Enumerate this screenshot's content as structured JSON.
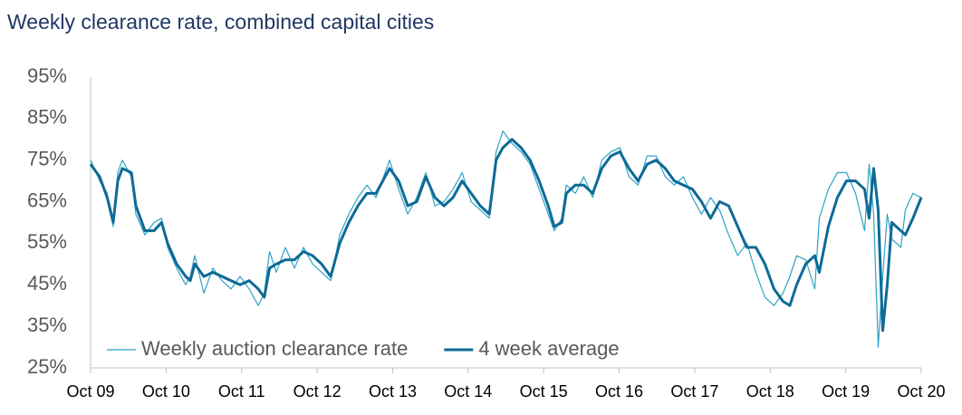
{
  "chart_data": {
    "type": "line",
    "title": "Weekly clearance rate, combined capital cities",
    "x": [
      2009.75,
      2009.87,
      2009.97,
      2010.05,
      2010.11,
      2010.17,
      2010.29,
      2010.35,
      2010.47,
      2010.59,
      2010.69,
      2010.77,
      2010.89,
      2011.01,
      2011.07,
      2011.13,
      2011.25,
      2011.37,
      2011.49,
      2011.61,
      2011.73,
      2011.85,
      2011.97,
      2012.05,
      2012.12,
      2012.21,
      2012.33,
      2012.45,
      2012.57,
      2012.69,
      2012.81,
      2012.93,
      2013.05,
      2013.17,
      2013.29,
      2013.41,
      2013.53,
      2013.65,
      2013.71,
      2013.83,
      2013.95,
      2014.07,
      2014.19,
      2014.31,
      2014.43,
      2014.55,
      2014.67,
      2014.79,
      2014.91,
      2015.03,
      2015.12,
      2015.21,
      2015.33,
      2015.45,
      2015.57,
      2015.69,
      2015.81,
      2015.89,
      2015.99,
      2016.05,
      2016.17,
      2016.28,
      2016.4,
      2016.52,
      2016.64,
      2016.76,
      2016.88,
      2017.0,
      2017.12,
      2017.24,
      2017.36,
      2017.48,
      2017.6,
      2017.72,
      2017.84,
      2017.96,
      2018.08,
      2018.2,
      2018.32,
      2018.44,
      2018.56,
      2018.68,
      2018.8,
      2018.92,
      2019.01,
      2019.1,
      2019.22,
      2019.34,
      2019.4,
      2019.52,
      2019.64,
      2019.76,
      2019.88,
      2020.0,
      2020.06,
      2020.12,
      2020.18,
      2020.24,
      2020.3,
      2020.36,
      2020.48,
      2020.54,
      2020.64,
      2020.75
    ],
    "series": [
      {
        "name": "Weekly auction clearance rate",
        "color": "#2ea3c4",
        "width": 1.2,
        "values": [
          75,
          70,
          67,
          59,
          72,
          75,
          71,
          62,
          57,
          60,
          61,
          54,
          49,
          45,
          47,
          52,
          43,
          49,
          46,
          44,
          47,
          44,
          40,
          43,
          53,
          48,
          54,
          49,
          54,
          50,
          48,
          46,
          57,
          62,
          66,
          69,
          66,
          72,
          75,
          68,
          62,
          66,
          72,
          64,
          65,
          68,
          72,
          65,
          63,
          61,
          77,
          82,
          79,
          77,
          74,
          68,
          62,
          58,
          61,
          69,
          67,
          71,
          66,
          75,
          77,
          78,
          71,
          69,
          76,
          76,
          71,
          69,
          71,
          66,
          62,
          66,
          63,
          57,
          52,
          55,
          48,
          42,
          40,
          43,
          47,
          52,
          51,
          44,
          61,
          68,
          72,
          72,
          67,
          58,
          74,
          62,
          30,
          47,
          62,
          56,
          54,
          63,
          67,
          66
        ]
      },
      {
        "name": "4 week average",
        "color": "#0e6a96",
        "width": 3,
        "values": [
          74,
          71,
          66,
          60,
          70,
          73,
          72,
          64,
          58,
          58,
          60,
          55,
          50,
          47,
          46,
          50,
          47,
          48,
          47,
          46,
          45,
          46,
          44,
          42,
          49,
          50,
          51,
          51,
          53,
          52,
          50,
          47,
          55,
          60,
          64,
          67,
          67,
          71,
          73,
          70,
          64,
          65,
          71,
          66,
          64,
          66,
          70,
          67,
          64,
          62,
          75,
          78,
          80,
          78,
          75,
          70,
          64,
          59,
          60,
          67,
          69,
          69,
          67,
          73,
          76,
          77,
          73,
          70,
          74,
          75,
          73,
          70,
          69,
          68,
          65,
          61,
          65,
          64,
          59,
          54,
          54,
          50,
          44,
          41,
          40,
          45,
          50,
          52,
          48,
          59,
          66,
          70,
          70,
          68,
          61,
          73,
          63,
          34,
          45,
          60,
          58,
          57,
          61,
          66
        ]
      }
    ],
    "xlim": [
      2009.75,
      2020.75
    ],
    "xticks": [
      {
        "value": 2009.75,
        "label": "Oct 09"
      },
      {
        "value": 2010.75,
        "label": "Oct 10"
      },
      {
        "value": 2011.75,
        "label": "Oct 11"
      },
      {
        "value": 2012.75,
        "label": "Oct 12"
      },
      {
        "value": 2013.75,
        "label": "Oct 13"
      },
      {
        "value": 2014.75,
        "label": "Oct 14"
      },
      {
        "value": 2015.75,
        "label": "Oct 15"
      },
      {
        "value": 2016.75,
        "label": "Oct 16"
      },
      {
        "value": 2017.75,
        "label": "Oct 17"
      },
      {
        "value": 2018.75,
        "label": "Oct 18"
      },
      {
        "value": 2019.75,
        "label": "Oct 19"
      },
      {
        "value": 2020.75,
        "label": "Oct 20"
      }
    ],
    "ylim": [
      25,
      95
    ],
    "yticks": [
      {
        "value": 25,
        "label": "25%"
      },
      {
        "value": 35,
        "label": "35%"
      },
      {
        "value": 45,
        "label": "45%"
      },
      {
        "value": 55,
        "label": "55%"
      },
      {
        "value": 65,
        "label": "65%"
      },
      {
        "value": 75,
        "label": "75%"
      },
      {
        "value": 85,
        "label": "85%"
      },
      {
        "value": 95,
        "label": "95%"
      }
    ],
    "grid": false,
    "legend": "lower left"
  }
}
